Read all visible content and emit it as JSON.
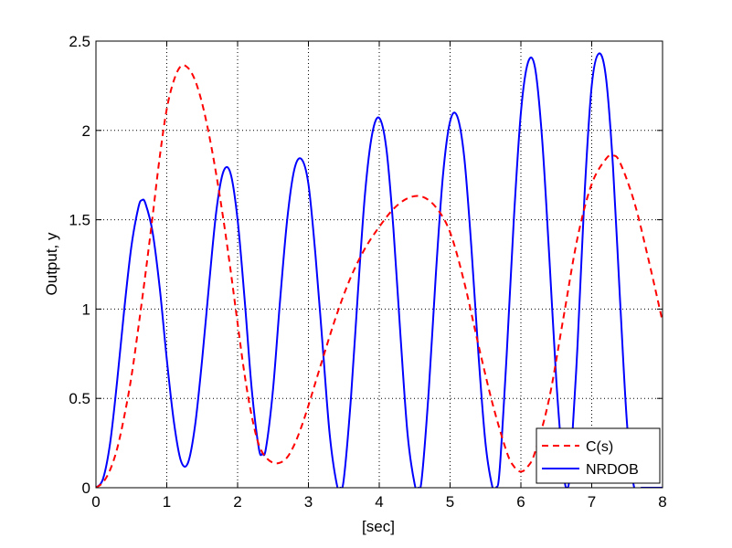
{
  "chart_data": {
    "type": "line",
    "title": "",
    "xlabel": "[sec]",
    "ylabel": "Output, y",
    "xlim": [
      0,
      8
    ],
    "ylim": [
      0,
      2.5
    ],
    "xticks": [
      0,
      1,
      2,
      3,
      4,
      5,
      6,
      7,
      8
    ],
    "yticks": [
      0,
      0.5,
      1,
      1.5,
      2,
      2.5
    ],
    "xtick_labels": [
      "0",
      "1",
      "2",
      "3",
      "4",
      "5",
      "6",
      "7",
      "8"
    ],
    "ytick_labels": [
      "0",
      "0.5",
      "1",
      "1.5",
      "2",
      "2.5"
    ],
    "grid": true,
    "legend_position": "bottom-right",
    "series": [
      {
        "name": "C(s)",
        "color": "#ff0000",
        "line_style": "dashed",
        "x": [
          0,
          0.1,
          0.2,
          0.3,
          0.4,
          0.5,
          0.6,
          0.7,
          0.8,
          0.9,
          1.0,
          1.1,
          1.2,
          1.3,
          1.4,
          1.5,
          1.6,
          1.7,
          1.8,
          1.9,
          2.0,
          2.1,
          2.2,
          2.3,
          2.4,
          2.5,
          2.6,
          2.7,
          2.8,
          2.9,
          3.0,
          3.2,
          3.4,
          3.6,
          3.8,
          4.0,
          4.2,
          4.4,
          4.6,
          4.8,
          5.0,
          5.2,
          5.4,
          5.6,
          5.8,
          5.9,
          6.0,
          6.1,
          6.2,
          6.4,
          6.6,
          6.8,
          7.0,
          7.2,
          7.3,
          7.4,
          7.6,
          7.8,
          8.0
        ],
        "y": [
          0,
          0.03,
          0.1,
          0.22,
          0.4,
          0.62,
          0.9,
          1.2,
          1.52,
          1.85,
          2.12,
          2.28,
          2.36,
          2.35,
          2.28,
          2.15,
          1.97,
          1.75,
          1.5,
          1.22,
          0.92,
          0.63,
          0.4,
          0.24,
          0.17,
          0.14,
          0.14,
          0.17,
          0.24,
          0.34,
          0.46,
          0.72,
          0.97,
          1.18,
          1.34,
          1.46,
          1.56,
          1.62,
          1.63,
          1.57,
          1.43,
          1.15,
          0.8,
          0.47,
          0.2,
          0.12,
          0.09,
          0.12,
          0.2,
          0.5,
          0.95,
          1.4,
          1.7,
          1.84,
          1.86,
          1.82,
          1.6,
          1.28,
          0.93
        ]
      },
      {
        "name": "NRDOB",
        "color": "#0000ff",
        "line_style": "solid",
        "x": [
          0,
          0.1,
          0.2,
          0.3,
          0.4,
          0.5,
          0.6,
          0.65,
          0.7,
          0.8,
          0.9,
          1.0,
          1.1,
          1.2,
          1.3,
          1.4,
          1.5,
          1.6,
          1.7,
          1.8,
          1.9,
          2.0,
          2.1,
          2.2,
          2.3,
          2.35,
          2.4,
          2.5,
          2.6,
          2.7,
          2.8,
          2.9,
          3.0,
          3.1,
          3.2,
          3.3,
          3.4,
          3.45,
          3.5,
          3.6,
          3.7,
          3.8,
          3.9,
          4.0,
          4.1,
          4.2,
          4.3,
          4.4,
          4.5,
          4.55,
          4.6,
          4.7,
          4.8,
          4.9,
          5.0,
          5.1,
          5.2,
          5.3,
          5.4,
          5.5,
          5.6,
          5.65,
          5.7,
          5.8,
          5.9,
          6.0,
          6.1,
          6.2,
          6.3,
          6.4,
          6.5,
          6.6,
          6.65,
          6.7,
          6.8,
          6.9,
          7.0,
          7.1,
          7.2,
          7.3,
          7.4,
          7.5,
          7.6,
          7.7,
          7.75,
          7.8,
          7.9,
          8.0
        ],
        "y": [
          0,
          0.05,
          0.25,
          0.6,
          1.0,
          1.35,
          1.57,
          1.61,
          1.59,
          1.43,
          1.12,
          0.72,
          0.37,
          0.15,
          0.14,
          0.35,
          0.72,
          1.15,
          1.55,
          1.77,
          1.76,
          1.5,
          1.05,
          0.55,
          0.22,
          0.19,
          0.22,
          0.55,
          1.05,
          1.5,
          1.78,
          1.84,
          1.7,
          1.3,
          0.8,
          0.3,
          0.02,
          0.0,
          0.05,
          0.5,
          1.1,
          1.65,
          1.98,
          2.07,
          1.9,
          1.45,
          0.85,
          0.3,
          0.02,
          0.0,
          0.05,
          0.55,
          1.2,
          1.75,
          2.05,
          2.08,
          1.85,
          1.35,
          0.75,
          0.25,
          0.0,
          0.0,
          0.1,
          0.75,
          1.5,
          2.1,
          2.38,
          2.35,
          1.95,
          1.3,
          0.6,
          0.1,
          0.0,
          0.12,
          0.8,
          1.65,
          2.25,
          2.43,
          2.3,
          1.8,
          1.05,
          0.35,
          0.0,
          0.0,
          0.0,
          0.0,
          0.0,
          0.0
        ]
      }
    ]
  }
}
